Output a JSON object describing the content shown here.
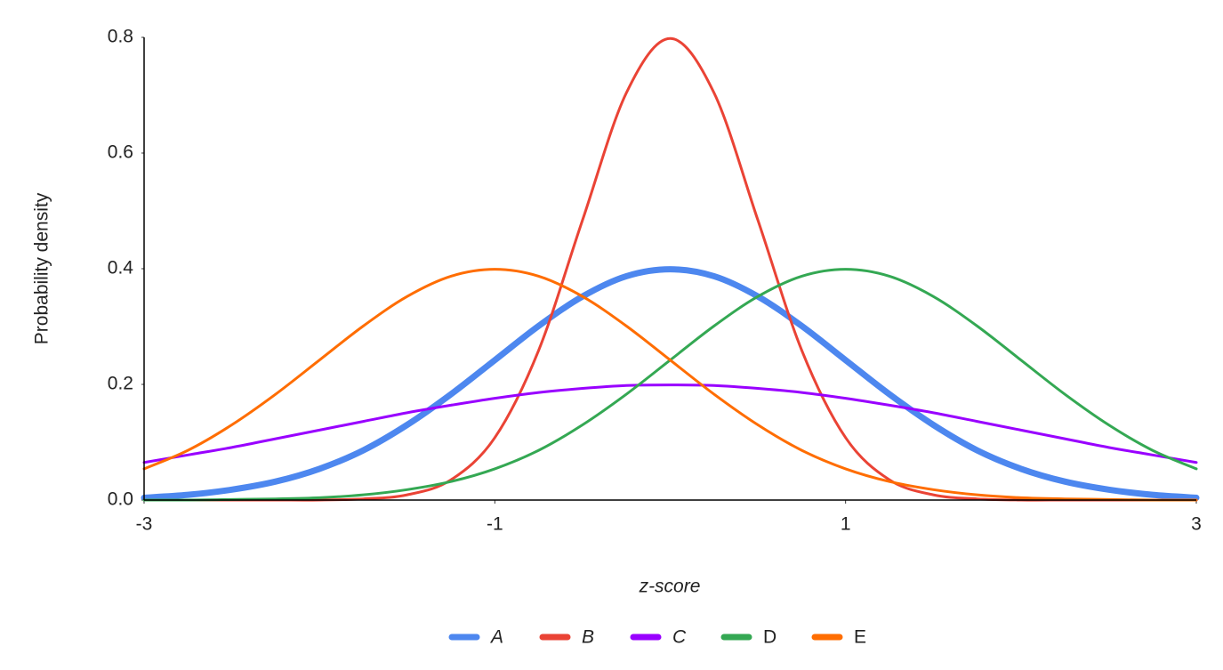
{
  "chart_data": {
    "type": "line",
    "x_label": "z-score",
    "y_label": "Probability density",
    "x": [
      -3,
      -2.75,
      -2.5,
      -2.25,
      -2,
      -1.75,
      -1.5,
      -1.25,
      -1,
      -0.75,
      -0.5,
      -0.25,
      0,
      0.25,
      0.5,
      0.75,
      1,
      1.25,
      1.5,
      1.75,
      2,
      2.25,
      2.5,
      2.75,
      3
    ],
    "series": [
      {
        "name": "A",
        "color": "#4d87ef",
        "line_width": 7,
        "italic": true,
        "values": [
          0.004,
          0.009,
          0.018,
          0.032,
          0.054,
          0.086,
          0.13,
          0.183,
          0.242,
          0.301,
          0.352,
          0.387,
          0.399,
          0.387,
          0.352,
          0.301,
          0.242,
          0.183,
          0.13,
          0.086,
          0.054,
          0.032,
          0.018,
          0.009,
          0.004
        ]
      },
      {
        "name": "B",
        "color": "#ea4335",
        "line_width": 3,
        "italic": true,
        "values": [
          0,
          0,
          0,
          0,
          0,
          0.002,
          0.009,
          0.035,
          0.108,
          0.259,
          0.484,
          0.704,
          0.798,
          0.704,
          0.484,
          0.259,
          0.108,
          0.035,
          0.009,
          0.002,
          0,
          0,
          0,
          0,
          0
        ]
      },
      {
        "name": "C",
        "color": "#9900ff",
        "line_width": 3,
        "italic": true,
        "values": [
          0.065,
          0.078,
          0.091,
          0.106,
          0.121,
          0.136,
          0.151,
          0.164,
          0.176,
          0.186,
          0.193,
          0.198,
          0.199,
          0.198,
          0.193,
          0.186,
          0.176,
          0.164,
          0.151,
          0.136,
          0.121,
          0.106,
          0.091,
          0.078,
          0.065
        ]
      },
      {
        "name": "D",
        "color": "#34a853",
        "line_width": 3,
        "italic": false,
        "values": [
          0,
          0,
          0.001,
          0.002,
          0.004,
          0.009,
          0.018,
          0.032,
          0.054,
          0.086,
          0.13,
          0.183,
          0.242,
          0.301,
          0.352,
          0.387,
          0.399,
          0.387,
          0.352,
          0.301,
          0.242,
          0.183,
          0.13,
          0.086,
          0.054
        ]
      },
      {
        "name": "E",
        "color": "#ff6d01",
        "line_width": 3,
        "italic": false,
        "values": [
          0.054,
          0.086,
          0.13,
          0.183,
          0.242,
          0.301,
          0.352,
          0.387,
          0.399,
          0.387,
          0.352,
          0.301,
          0.242,
          0.183,
          0.13,
          0.086,
          0.054,
          0.032,
          0.018,
          0.009,
          0.004,
          0.002,
          0.001,
          0,
          0
        ]
      }
    ],
    "xlim": [
      -3,
      3
    ],
    "xticks": [
      -3,
      -1,
      1,
      3
    ],
    "ylim": [
      0,
      0.8
    ],
    "yticks": [
      {
        "value": 0,
        "label": "0.0"
      },
      0.2,
      0.4,
      0.6,
      0.8
    ],
    "grid": false,
    "legend": "bottom"
  }
}
